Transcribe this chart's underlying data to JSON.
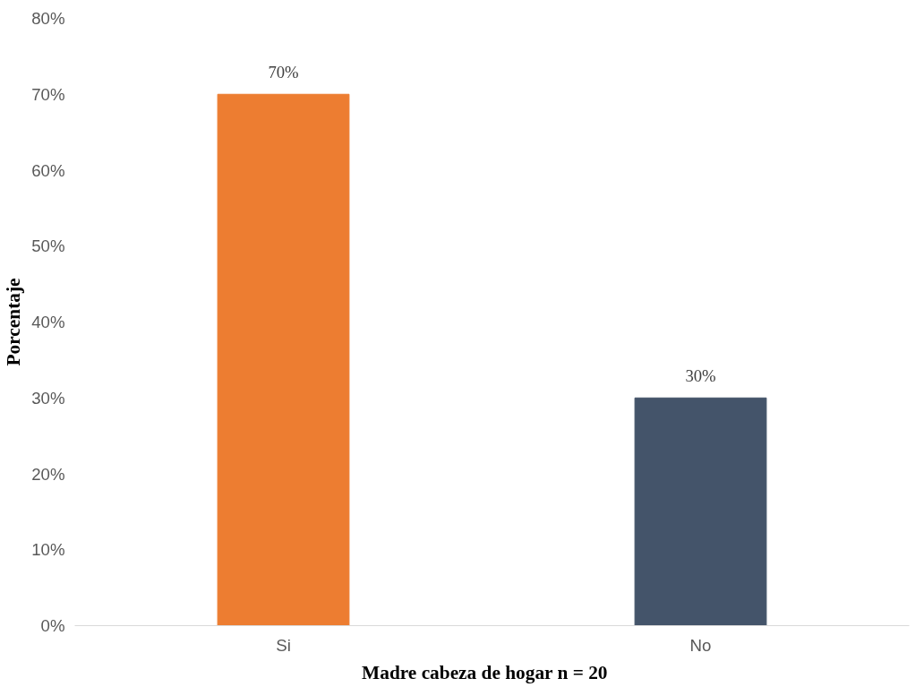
{
  "chart_data": {
    "type": "bar",
    "xlabel": "Madre cabeza de hogar    n = 20",
    "ylabel": "Porcentaje",
    "categories": [
      "Si",
      "No"
    ],
    "values": [
      70,
      30
    ],
    "colors": [
      "#ed7d31",
      "#44546a"
    ],
    "value_labels": [
      "70%",
      "30%"
    ],
    "ylim": [
      0,
      80
    ],
    "yticks": [
      {
        "value": 0,
        "label": "0%"
      },
      {
        "value": 10,
        "label": "10%"
      },
      {
        "value": 20,
        "label": "20%"
      },
      {
        "value": 30,
        "label": "30%"
      },
      {
        "value": 40,
        "label": "40%"
      },
      {
        "value": 50,
        "label": "50%"
      },
      {
        "value": 60,
        "label": "60%"
      },
      {
        "value": 70,
        "label": "70%"
      },
      {
        "value": 80,
        "label": "80%"
      }
    ],
    "grid": false
  }
}
